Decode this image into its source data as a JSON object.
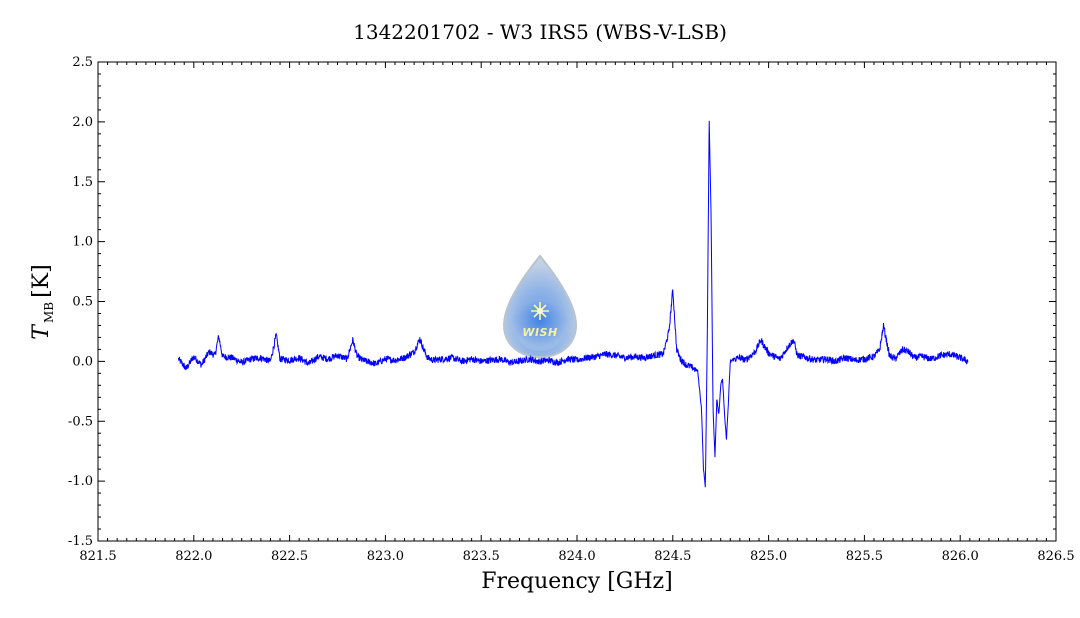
{
  "chart_data": {
    "type": "line",
    "title": "1342201702 - W3 IRS5 (WBS-V-LSB)",
    "xlabel": "Frequency [GHz]",
    "ylabel_main": "T",
    "ylabel_sub": "MB",
    "ylabel_unit": "[K]",
    "xlim": [
      821.5,
      826.5
    ],
    "ylim": [
      -1.5,
      2.5
    ],
    "x_ticks": [
      821.5,
      822.0,
      822.5,
      823.0,
      823.5,
      824.0,
      824.5,
      825.0,
      825.5,
      826.0,
      826.5
    ],
    "x_tick_labels": [
      "821.5",
      "822.0",
      "822.5",
      "823.0",
      "823.5",
      "824.0",
      "824.5",
      "825.0",
      "825.5",
      "826.0",
      "826.5"
    ],
    "y_ticks": [
      -1.5,
      -1.0,
      -0.5,
      0.0,
      0.5,
      1.0,
      1.5,
      2.0,
      2.5
    ],
    "y_tick_labels": [
      "-1.5",
      "-1.0",
      "-0.5",
      "0.0",
      "0.5",
      "1.0",
      "1.5",
      "2.0",
      "2.5"
    ],
    "grid": false,
    "line_color": "#0000ff",
    "series": [
      {
        "x": [
          821.92,
          821.96,
          822.0,
          822.04,
          822.08,
          822.11,
          822.13,
          822.15,
          822.2,
          822.25,
          822.3,
          822.35,
          822.4,
          822.43,
          822.45,
          822.5,
          822.55,
          822.6,
          822.65,
          822.7,
          822.75,
          822.8,
          822.83,
          822.85,
          822.87,
          822.9,
          822.95,
          823.0,
          823.05,
          823.1,
          823.15,
          823.18,
          823.2,
          823.22,
          823.25,
          823.3,
          823.35,
          823.4,
          823.45,
          823.5,
          823.55,
          823.6,
          823.65,
          823.7,
          823.75,
          823.8,
          823.85,
          823.9,
          823.95,
          824.0,
          824.05,
          824.1,
          824.15,
          824.2,
          824.25,
          824.3,
          824.35,
          824.4,
          824.45,
          824.48,
          824.5,
          824.52,
          824.54,
          824.57,
          824.6,
          824.63,
          824.65,
          824.66,
          824.67,
          824.68,
          824.69,
          824.7,
          824.71,
          824.72,
          824.73,
          824.74,
          824.75,
          824.76,
          824.77,
          824.78,
          824.79,
          824.8,
          824.82,
          824.85,
          824.88,
          824.9,
          824.93,
          824.96,
          824.98,
          825.0,
          825.03,
          825.06,
          825.1,
          825.13,
          825.15,
          825.2,
          825.25,
          825.3,
          825.35,
          825.4,
          825.45,
          825.5,
          825.55,
          825.58,
          825.6,
          825.63,
          825.66,
          825.7,
          825.73,
          825.76,
          825.8,
          825.85,
          825.9,
          825.95,
          826.0,
          826.04
        ],
        "y": [
          0.02,
          -0.06,
          0.04,
          -0.03,
          0.08,
          0.05,
          0.21,
          0.04,
          0.03,
          -0.01,
          0.02,
          0.03,
          0.0,
          0.22,
          0.02,
          0.01,
          0.03,
          -0.02,
          0.04,
          0.02,
          0.05,
          0.02,
          0.18,
          0.05,
          0.02,
          0.0,
          -0.02,
          0.02,
          0.01,
          0.03,
          0.08,
          0.19,
          0.1,
          0.03,
          0.01,
          0.02,
          0.03,
          0.0,
          0.02,
          0.0,
          0.01,
          0.02,
          -0.01,
          0.0,
          0.02,
          0.0,
          0.01,
          -0.01,
          0.02,
          0.01,
          0.03,
          0.04,
          0.06,
          0.05,
          0.03,
          0.04,
          0.03,
          0.05,
          0.06,
          0.25,
          0.6,
          0.1,
          0.02,
          -0.03,
          -0.05,
          -0.08,
          -0.4,
          -0.9,
          -1.05,
          0.2,
          2.02,
          1.2,
          -0.4,
          -0.8,
          -0.3,
          -0.45,
          -0.2,
          -0.15,
          -0.45,
          -0.65,
          -0.35,
          0.0,
          0.02,
          0.03,
          0.01,
          0.04,
          0.08,
          0.18,
          0.12,
          0.07,
          0.04,
          0.02,
          0.12,
          0.18,
          0.05,
          0.03,
          0.01,
          0.02,
          0.0,
          0.03,
          0.01,
          0.02,
          0.04,
          0.1,
          0.3,
          0.05,
          0.02,
          0.1,
          0.08,
          0.03,
          0.04,
          0.02,
          0.05,
          0.06,
          0.03,
          0.0
        ]
      }
    ],
    "logo_text": "WISH"
  }
}
